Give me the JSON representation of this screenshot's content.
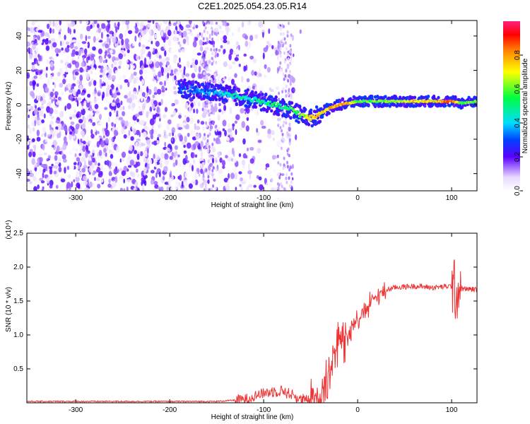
{
  "title": "C2E1.2025.054.23.05.R14",
  "colors": {
    "snr_line": "#ee3333",
    "axis": "#000000",
    "background": "#ffffff"
  },
  "chart_data": [
    {
      "type": "heatmap",
      "xlabel": "Height of straight line (km)",
      "ylabel": "Frequency (Hz)",
      "xlim": [
        -352,
        127
      ],
      "ylim": [
        -50,
        49
      ],
      "xticks": [
        -300,
        -200,
        -100,
        0,
        100
      ],
      "yticks": [
        -40,
        -20,
        0,
        20,
        40
      ],
      "colorbar": {
        "label": "Normalized spectral amplitude",
        "range": [
          0,
          1
        ],
        "ticks": [
          0.0,
          0.2,
          0.4,
          0.6,
          0.8
        ],
        "colormap": "rainbow"
      },
      "ridge": {
        "x": [
          -190,
          -170,
          -150,
          -130,
          -110,
          -90,
          -70,
          -60,
          -50,
          -40,
          -30,
          -20,
          -10,
          0,
          20,
          40,
          60,
          80,
          100,
          110,
          127
        ],
        "y": [
          10,
          8,
          7,
          5,
          3,
          0,
          -3,
          -6,
          -8,
          -5,
          -2,
          0,
          1,
          2,
          2,
          2,
          2,
          2,
          2,
          1,
          2
        ],
        "amplitude": [
          0.28,
          0.35,
          0.38,
          0.45,
          0.48,
          0.5,
          0.55,
          0.6,
          0.7,
          0.72,
          0.75,
          0.78,
          0.8,
          0.55,
          0.6,
          0.62,
          0.75,
          0.7,
          0.88,
          0.6,
          0.62
        ]
      },
      "noise": {
        "x_range": [
          -352,
          -60
        ],
        "amplitude_range": [
          0.0,
          0.22
        ]
      }
    },
    {
      "type": "line",
      "xlabel": "Height of straight line (km)",
      "ylabel": "SNR (10 * v/v)",
      "y_multiplier": "(x10⁴)",
      "xlim": [
        -352,
        127
      ],
      "ylim": [
        0,
        2.5
      ],
      "xticks": [
        -300,
        -200,
        -100,
        0,
        100
      ],
      "yticks": [
        0.5,
        1.0,
        1.5,
        2.0,
        2.5
      ],
      "series": [
        {
          "x": [
            -352,
            -300,
            -250,
            -200,
            -150,
            -120,
            -110,
            -100,
            -90,
            -80,
            -70,
            -60,
            -50,
            -40,
            -35,
            -30,
            -25,
            -20,
            -15,
            -10,
            -5,
            0,
            10,
            20,
            30,
            40,
            60,
            80,
            100,
            103,
            105,
            107,
            110,
            127
          ],
          "y": [
            0.02,
            0.02,
            0.02,
            0.02,
            0.02,
            0.05,
            0.1,
            0.14,
            0.17,
            0.18,
            0.12,
            0.04,
            0.03,
            0.08,
            0.3,
            0.5,
            0.75,
            0.9,
            0.98,
            1.05,
            1.15,
            1.25,
            1.4,
            1.58,
            1.66,
            1.7,
            1.72,
            1.7,
            1.72,
            1.68,
            1.6,
            1.66,
            1.68,
            1.67
          ]
        }
      ]
    }
  ]
}
